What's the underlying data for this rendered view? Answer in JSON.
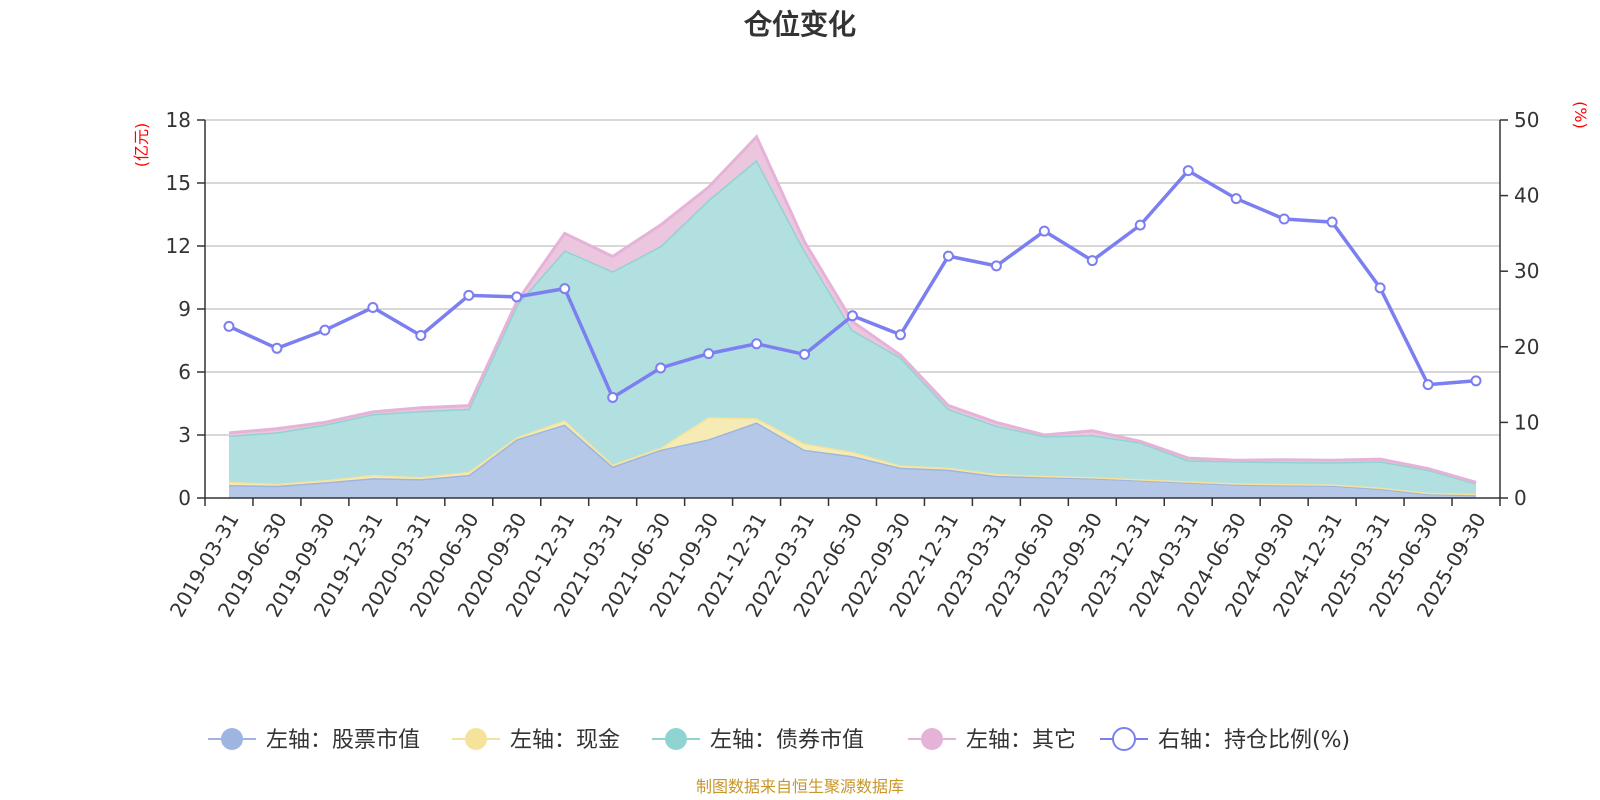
{
  "chart_data": {
    "type": "area",
    "title": "仓位变化",
    "left_axis": {
      "unit_label": "(亿元)",
      "ylim": [
        0,
        18
      ],
      "ticks": [
        0,
        3,
        6,
        9,
        12,
        15,
        18
      ]
    },
    "right_axis": {
      "unit_label": "(%)",
      "ylim": [
        0,
        50
      ],
      "ticks": [
        0,
        10,
        20,
        30,
        40,
        50
      ]
    },
    "categories": [
      "2019-03-31",
      "2019-06-30",
      "2019-09-30",
      "2019-12-31",
      "2020-03-31",
      "2020-06-30",
      "2020-09-30",
      "2020-12-31",
      "2021-03-31",
      "2021-06-30",
      "2021-09-30",
      "2021-12-31",
      "2022-03-31",
      "2022-06-30",
      "2022-09-30",
      "2022-12-31",
      "2023-03-31",
      "2023-06-30",
      "2023-09-30",
      "2023-12-31",
      "2024-03-31",
      "2024-06-30",
      "2024-09-30",
      "2024-12-31",
      "2025-03-31",
      "2025-06-30",
      "2025-09-30"
    ],
    "series": [
      {
        "name": "左轴：股票市值",
        "axis": "left",
        "stack": true,
        "color": "#9db5e0",
        "fill": "#b5c8e8",
        "values": [
          0.62,
          0.58,
          0.75,
          0.95,
          0.9,
          1.1,
          2.8,
          3.5,
          1.5,
          2.3,
          2.8,
          3.6,
          2.3,
          2.0,
          1.45,
          1.35,
          1.05,
          1.0,
          0.95,
          0.85,
          0.75,
          0.65,
          0.62,
          0.6,
          0.45,
          0.2,
          0.15
        ]
      },
      {
        "name": "左轴：现金",
        "axis": "left",
        "stack": true,
        "color": "#f5e39c",
        "fill": "#f7ebb5",
        "values": [
          0.15,
          0.1,
          0.1,
          0.15,
          0.1,
          0.15,
          0.1,
          0.2,
          0.1,
          0.1,
          1.05,
          0.2,
          0.3,
          0.2,
          0.1,
          0.1,
          0.1,
          0.05,
          0.05,
          0.05,
          0.05,
          0.05,
          0.05,
          0.05,
          0.05,
          0.05,
          0.05
        ]
      },
      {
        "name": "左轴：债券市值",
        "axis": "left",
        "stack": true,
        "color": "#8fd4d2",
        "fill": "#b2dfdf",
        "values": [
          2.2,
          2.45,
          2.65,
          2.9,
          3.15,
          3.0,
          6.3,
          8.1,
          9.2,
          9.6,
          10.35,
          12.3,
          9.2,
          5.8,
          5.15,
          2.8,
          2.3,
          1.9,
          2.0,
          1.75,
          1.0,
          1.05,
          1.05,
          1.05,
          1.25,
          1.1,
          0.5
        ]
      },
      {
        "name": "左轴：其它",
        "axis": "left",
        "stack": true,
        "color": "#e6b3d8",
        "fill": "#ecc6df",
        "values": [
          0.13,
          0.17,
          0.1,
          0.1,
          0.15,
          0.15,
          0.15,
          0.8,
          0.7,
          1.0,
          0.6,
          1.1,
          0.4,
          0.4,
          0.1,
          0.15,
          0.15,
          0.05,
          0.2,
          0.05,
          0.1,
          0.05,
          0.1,
          0.1,
          0.1,
          0.05,
          0.05
        ]
      },
      {
        "name": "右轴：持仓比例(%)",
        "axis": "right",
        "stack": false,
        "color": "#7b7ff0",
        "values": [
          22.7,
          19.8,
          22.2,
          25.2,
          21.5,
          26.8,
          26.6,
          27.7,
          13.3,
          17.2,
          19.1,
          20.4,
          19.0,
          24.1,
          21.6,
          32.0,
          30.7,
          35.3,
          31.4,
          36.1,
          43.3,
          39.6,
          36.9,
          36.5,
          27.8,
          15.0,
          15.5
        ]
      }
    ],
    "legend_position": "bottom-center",
    "grid": true
  },
  "source_note": "制图数据来自恒生聚源数据库"
}
